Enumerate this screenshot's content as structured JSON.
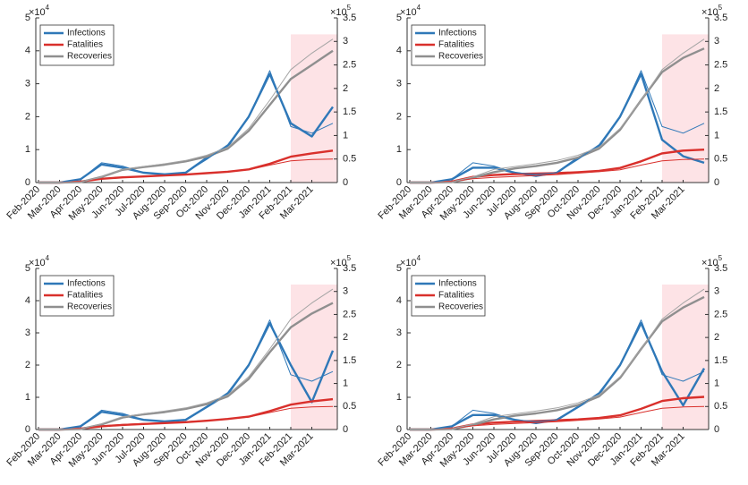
{
  "chart_data": [
    {
      "type": "line",
      "categories": [
        "Feb-2020",
        "Mar-2020",
        "Apr-2020",
        "May-2020",
        "Jun-2020",
        "Jul-2020",
        "Aug-2020",
        "Sep-2020",
        "Oct-2020",
        "Nov-2020",
        "Dec-2020",
        "Jan-2021",
        "Feb-2021",
        "Mar-2021",
        null
      ],
      "ylim": [
        0,
        50000
      ],
      "yticks": [
        {
          "value": 0,
          "label": "0"
        },
        {
          "value": 10000,
          "label": "1"
        },
        {
          "value": 20000,
          "label": "2"
        },
        {
          "value": 30000,
          "label": "3"
        },
        {
          "value": 40000,
          "label": "4"
        },
        {
          "value": 50000,
          "label": "5"
        }
      ],
      "y_multiplier": {
        "base": "×10",
        "exp": "4"
      },
      "y2lim": [
        0,
        350000
      ],
      "y2ticks": [
        {
          "value": 0,
          "label": "0"
        },
        {
          "value": 50000,
          "label": "0.5"
        },
        {
          "value": 100000,
          "label": "1"
        },
        {
          "value": 150000,
          "label": "1.5"
        },
        {
          "value": 200000,
          "label": "2"
        },
        {
          "value": 250000,
          "label": "2.5"
        },
        {
          "value": 300000,
          "label": "3"
        },
        {
          "value": 350000,
          "label": "3.5"
        }
      ],
      "y2_multiplier": {
        "base": "×10",
        "exp": "5"
      },
      "legend": "upper left",
      "highlight": {
        "from": "Feb-2021",
        "y2_top": 315000,
        "color": "#fde3e6"
      },
      "series": [
        {
          "name": "Infections",
          "color": "#2f78b8",
          "width": 2.4,
          "values": [
            0,
            0,
            1000,
            5500,
            4500,
            3000,
            2500,
            3000,
            7500,
            11000,
            20000,
            33000,
            18000,
            14000,
            23000
          ]
        },
        {
          "name": "Fatalities",
          "color": "#d9302c",
          "width": 2.4,
          "axis": "y2",
          "values": [
            0,
            0,
            2000,
            8000,
            11000,
            13000,
            15000,
            17000,
            20000,
            23000,
            28000,
            40000,
            55000,
            62000,
            68000
          ]
        },
        {
          "name": "Recoveries",
          "color": "#8f8f8f",
          "width": 2.4,
          "axis": "y2",
          "values": [
            0,
            0,
            1000,
            12000,
            27000,
            33000,
            38000,
            45000,
            55000,
            72000,
            110000,
            165000,
            220000,
            250000,
            280000
          ]
        },
        {
          "color": "#2f78b8",
          "width": 1,
          "values": [
            0,
            0,
            1000,
            6000,
            5000,
            3000,
            2500,
            3000,
            7000,
            11500,
            20000,
            34000,
            17000,
            15000,
            18000
          ]
        },
        {
          "color": "#d9302c",
          "width": 1,
          "axis": "y2",
          "values": [
            0,
            0,
            2000,
            8000,
            11000,
            13000,
            15000,
            17000,
            20000,
            23000,
            27000,
            37000,
            46000,
            49000,
            50000
          ]
        },
        {
          "color": "#a5a5a5",
          "width": 1,
          "axis": "y2",
          "values": [
            0,
            0,
            1000,
            12000,
            28000,
            34000,
            40000,
            47000,
            58000,
            75000,
            115000,
            175000,
            240000,
            275000,
            305000
          ]
        }
      ]
    },
    {
      "type": "line",
      "categories": [
        "Feb-2020",
        "Mar-2020",
        "Apr-2020",
        "May-2020",
        "Jun-2020",
        "Jul-2020",
        "Aug-2020",
        "Sep-2020",
        "Oct-2020",
        "Nov-2020",
        "Dec-2020",
        "Jan-2021",
        "Feb-2021",
        "Mar-2021",
        null
      ],
      "ylim": [
        0,
        50000
      ],
      "yticks": [
        {
          "value": 0,
          "label": "0"
        },
        {
          "value": 10000,
          "label": "1"
        },
        {
          "value": 20000,
          "label": "2"
        },
        {
          "value": 30000,
          "label": "3"
        },
        {
          "value": 40000,
          "label": "4"
        },
        {
          "value": 50000,
          "label": "5"
        }
      ],
      "y_multiplier": {
        "base": "×10",
        "exp": "4"
      },
      "y2lim": [
        0,
        350000
      ],
      "y2ticks": [
        {
          "value": 0,
          "label": "0"
        },
        {
          "value": 50000,
          "label": "0.5"
        },
        {
          "value": 100000,
          "label": "1"
        },
        {
          "value": 150000,
          "label": "1.5"
        },
        {
          "value": 200000,
          "label": "2"
        },
        {
          "value": 250000,
          "label": "2.5"
        },
        {
          "value": 300000,
          "label": "3"
        },
        {
          "value": 350000,
          "label": "3.5"
        }
      ],
      "y2_multiplier": {
        "base": "×10",
        "exp": "5"
      },
      "legend": "upper left",
      "highlight": {
        "from": "Feb-2021",
        "y2_top": 315000,
        "color": "#fde3e6"
      },
      "series": [
        {
          "name": "Infections",
          "color": "#2f78b8",
          "width": 2.4,
          "values": [
            0,
            0,
            1000,
            4500,
            4500,
            3000,
            2000,
            3000,
            7500,
            11000,
            20000,
            33000,
            13000,
            8000,
            6000
          ]
        },
        {
          "name": "Fatalities",
          "color": "#d9302c",
          "width": 2.4,
          "axis": "y2",
          "values": [
            0,
            0,
            2000,
            12000,
            16000,
            18000,
            19000,
            20000,
            22000,
            25000,
            31000,
            45000,
            62000,
            68000,
            70000
          ]
        },
        {
          "name": "Recoveries",
          "color": "#8f8f8f",
          "width": 2.4,
          "axis": "y2",
          "values": [
            0,
            0,
            1000,
            10000,
            22000,
            30000,
            35000,
            42000,
            53000,
            72000,
            112000,
            175000,
            235000,
            265000,
            285000
          ]
        },
        {
          "color": "#2f78b8",
          "width": 1,
          "values": [
            0,
            0,
            1000,
            6000,
            5000,
            3000,
            2500,
            3000,
            7000,
            11500,
            20000,
            34000,
            17000,
            15000,
            18000
          ]
        },
        {
          "color": "#d9302c",
          "width": 1,
          "axis": "y2",
          "values": [
            0,
            0,
            2000,
            8000,
            11000,
            13000,
            15000,
            17000,
            20000,
            23000,
            27000,
            37000,
            46000,
            49000,
            50000
          ]
        },
        {
          "color": "#a5a5a5",
          "width": 1,
          "axis": "y2",
          "values": [
            0,
            0,
            1000,
            12000,
            28000,
            34000,
            40000,
            47000,
            58000,
            75000,
            115000,
            175000,
            240000,
            275000,
            305000
          ]
        }
      ]
    },
    {
      "type": "line",
      "categories": [
        "Feb-2020",
        "Mar-2020",
        "Apr-2020",
        "May-2020",
        "Jun-2020",
        "Jul-2020",
        "Aug-2020",
        "Sep-2020",
        "Oct-2020",
        "Nov-2020",
        "Dec-2020",
        "Jan-2021",
        "Feb-2021",
        "Mar-2021",
        null
      ],
      "ylim": [
        0,
        50000
      ],
      "yticks": [
        {
          "value": 0,
          "label": "0"
        },
        {
          "value": 10000,
          "label": "1"
        },
        {
          "value": 20000,
          "label": "2"
        },
        {
          "value": 30000,
          "label": "3"
        },
        {
          "value": 40000,
          "label": "4"
        },
        {
          "value": 50000,
          "label": "5"
        }
      ],
      "y_multiplier": {
        "base": "×10",
        "exp": "4"
      },
      "y2lim": [
        0,
        350000
      ],
      "y2ticks": [
        {
          "value": 0,
          "label": "0"
        },
        {
          "value": 50000,
          "label": "0.5"
        },
        {
          "value": 100000,
          "label": "1"
        },
        {
          "value": 150000,
          "label": "1.5"
        },
        {
          "value": 200000,
          "label": "2"
        },
        {
          "value": 250000,
          "label": "2.5"
        },
        {
          "value": 300000,
          "label": "3"
        },
        {
          "value": 350000,
          "label": "3.5"
        }
      ],
      "y2_multiplier": {
        "base": "×10",
        "exp": "5"
      },
      "legend": "upper left",
      "highlight": {
        "from": "Feb-2021",
        "y2_top": 315000,
        "color": "#fde3e6"
      },
      "series": [
        {
          "name": "Infections",
          "color": "#2f78b8",
          "width": 2.4,
          "values": [
            0,
            0,
            1000,
            5500,
            4500,
            3000,
            2500,
            3000,
            7000,
            11000,
            20000,
            33000,
            20000,
            8500,
            24500
          ]
        },
        {
          "name": "Fatalities",
          "color": "#d9302c",
          "width": 2.4,
          "axis": "y2",
          "values": [
            0,
            0,
            2000,
            7000,
            10000,
            12000,
            14000,
            16000,
            19000,
            23000,
            28000,
            40000,
            54000,
            61000,
            66000
          ]
        },
        {
          "name": "Recoveries",
          "color": "#8f8f8f",
          "width": 2.4,
          "axis": "y2",
          "values": [
            0,
            0,
            1000,
            11000,
            26000,
            33000,
            38000,
            45000,
            55000,
            72000,
            110000,
            168000,
            222000,
            252000,
            275000
          ]
        },
        {
          "color": "#2f78b8",
          "width": 1,
          "values": [
            0,
            0,
            1000,
            6000,
            5000,
            3000,
            2500,
            3000,
            7000,
            11500,
            20000,
            34000,
            17000,
            15000,
            18000
          ]
        },
        {
          "color": "#d9302c",
          "width": 1,
          "axis": "y2",
          "values": [
            0,
            0,
            2000,
            8000,
            11000,
            13000,
            15000,
            17000,
            20000,
            23000,
            27000,
            37000,
            46000,
            49000,
            50000
          ]
        },
        {
          "color": "#a5a5a5",
          "width": 1,
          "axis": "y2",
          "values": [
            0,
            0,
            1000,
            12000,
            28000,
            34000,
            40000,
            47000,
            58000,
            75000,
            115000,
            175000,
            240000,
            275000,
            305000
          ]
        }
      ]
    },
    {
      "type": "line",
      "categories": [
        "Feb-2020",
        "Mar-2020",
        "Apr-2020",
        "May-2020",
        "Jun-2020",
        "Jul-2020",
        "Aug-2020",
        "Sep-2020",
        "Oct-2020",
        "Nov-2020",
        "Dec-2020",
        "Jan-2021",
        "Feb-2021",
        "Mar-2021",
        null
      ],
      "ylim": [
        0,
        50000
      ],
      "yticks": [
        {
          "value": 0,
          "label": "0"
        },
        {
          "value": 10000,
          "label": "1"
        },
        {
          "value": 20000,
          "label": "2"
        },
        {
          "value": 30000,
          "label": "3"
        },
        {
          "value": 40000,
          "label": "4"
        },
        {
          "value": 50000,
          "label": "5"
        }
      ],
      "y_multiplier": {
        "base": "×10",
        "exp": "4"
      },
      "y2lim": [
        0,
        350000
      ],
      "y2ticks": [
        {
          "value": 0,
          "label": "0"
        },
        {
          "value": 50000,
          "label": "0.5"
        },
        {
          "value": 100000,
          "label": "1"
        },
        {
          "value": 150000,
          "label": "1.5"
        },
        {
          "value": 200000,
          "label": "2"
        },
        {
          "value": 250000,
          "label": "2.5"
        },
        {
          "value": 300000,
          "label": "3"
        },
        {
          "value": 350000,
          "label": "3.5"
        }
      ],
      "y2_multiplier": {
        "base": "×10",
        "exp": "5"
      },
      "legend": "upper left",
      "highlight": {
        "from": "Feb-2021",
        "y2_top": 315000,
        "color": "#fde3e6"
      },
      "series": [
        {
          "name": "Infections",
          "color": "#2f78b8",
          "width": 2.4,
          "values": [
            0,
            0,
            1000,
            4500,
            4500,
            3000,
            2000,
            3000,
            7000,
            11000,
            20000,
            33000,
            18000,
            7500,
            19000
          ]
        },
        {
          "name": "Fatalities",
          "color": "#d9302c",
          "width": 2.4,
          "axis": "y2",
          "values": [
            0,
            0,
            2000,
            11000,
            15000,
            17000,
            18500,
            20000,
            22000,
            25000,
            31000,
            45000,
            62000,
            68000,
            71000
          ]
        },
        {
          "name": "Recoveries",
          "color": "#8f8f8f",
          "width": 2.4,
          "axis": "y2",
          "values": [
            0,
            0,
            1000,
            10000,
            22000,
            30000,
            35000,
            42000,
            53000,
            72000,
            112000,
            175000,
            235000,
            265000,
            288000
          ]
        },
        {
          "color": "#2f78b8",
          "width": 1,
          "values": [
            0,
            0,
            1000,
            6000,
            5000,
            3000,
            2500,
            3000,
            7000,
            11500,
            20000,
            34000,
            17000,
            15000,
            18000
          ]
        },
        {
          "color": "#d9302c",
          "width": 1,
          "axis": "y2",
          "values": [
            0,
            0,
            2000,
            8000,
            11000,
            13000,
            15000,
            17000,
            20000,
            23000,
            27000,
            37000,
            46000,
            49000,
            50000
          ]
        },
        {
          "color": "#a5a5a5",
          "width": 1,
          "axis": "y2",
          "values": [
            0,
            0,
            1000,
            12000,
            28000,
            34000,
            40000,
            47000,
            58000,
            75000,
            115000,
            175000,
            240000,
            275000,
            305000
          ]
        }
      ]
    }
  ]
}
